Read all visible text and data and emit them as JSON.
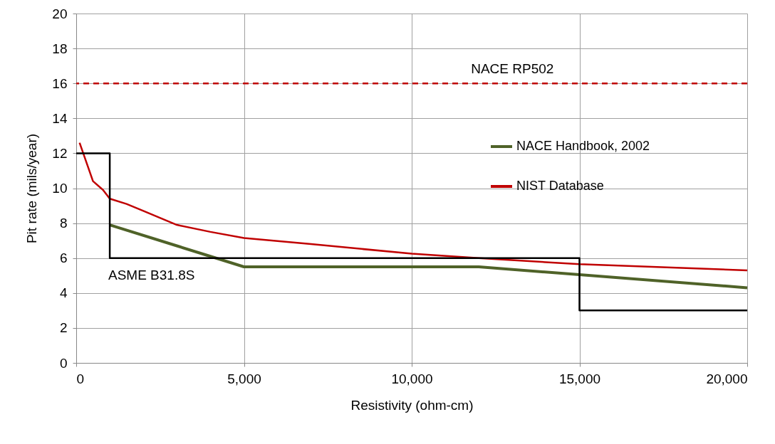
{
  "chart_data": {
    "type": "line",
    "xlabel": "Resistivity (ohm-cm)",
    "ylabel": "Pit rate (mils/year)",
    "xlim": [
      0,
      20000
    ],
    "xticks": [
      0,
      {
        "value": 5000,
        "label": "5,000"
      },
      {
        "value": 10000,
        "label": "10,000"
      },
      {
        "value": 15000,
        "label": "15,000"
      },
      {
        "value": 20000,
        "label": "20,000"
      }
    ],
    "ylim": [
      0,
      20
    ],
    "yticks": [
      0,
      2,
      4,
      6,
      8,
      10,
      12,
      14,
      16,
      18,
      20
    ],
    "grid": true,
    "legend": "top right",
    "marker": "none",
    "line_style": "solid",
    "series": [
      {
        "name": "NACE Handbook, 2002",
        "color": "#4f6228",
        "x": [
          1000,
          3000,
          4000,
          5000,
          12000,
          15000,
          20000
        ],
        "values": [
          7.9,
          6.7,
          6.1,
          5.5,
          5.5,
          5.05,
          4.3
        ]
      },
      {
        "name": "NIST Database",
        "color": "#c00000",
        "x": [
          100,
          300,
          500,
          800,
          1000,
          1500,
          2000,
          3000,
          4000,
          5000,
          7000,
          10000,
          12000,
          15000,
          20000
        ],
        "values": [
          12.6,
          11.5,
          10.4,
          9.9,
          9.4,
          9.1,
          8.7,
          7.9,
          7.5,
          7.15,
          6.8,
          6.25,
          6.0,
          5.65,
          5.3
        ]
      },
      {
        "color": "#000000",
        "x": [
          0,
          1000,
          1000,
          15000,
          15000,
          20000
        ],
        "values": [
          12,
          12,
          6,
          6,
          3,
          3
        ]
      }
    ],
    "ref_lines": [
      {
        "axis": "y",
        "value": 16,
        "label": "NACE  RP502",
        "color": "#c00000",
        "line_style": "dashed"
      }
    ],
    "annotations": [
      "ASME B31.8S"
    ]
  }
}
